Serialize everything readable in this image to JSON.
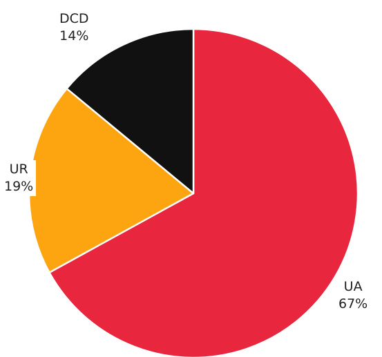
{
  "chart_data": {
    "type": "pie",
    "title": "",
    "start_angle_deg": 0,
    "direction": "clockwise",
    "slices": [
      {
        "label": "UA",
        "value": 67,
        "percent_label": "67%",
        "color": "#e8273f"
      },
      {
        "label": "UR",
        "value": 19,
        "percent_label": "19%",
        "color": "#fda511"
      },
      {
        "label": "DCD",
        "value": 14,
        "percent_label": "14%",
        "color": "#111111"
      }
    ],
    "slice_border_color": "#ffffff"
  }
}
